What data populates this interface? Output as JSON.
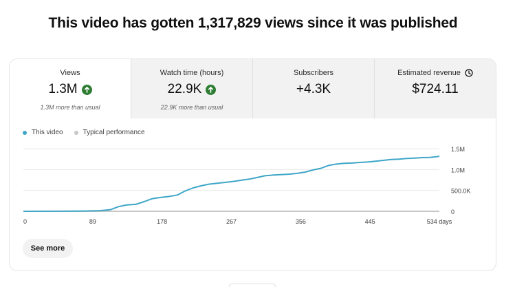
{
  "headline": "This video has gotten 1,317,829 views since it was published",
  "metrics": [
    {
      "label": "Views",
      "value": "1.3M",
      "trend": "up",
      "sub": "1.3M more than usual",
      "selected": true
    },
    {
      "label": "Watch time (hours)",
      "value": "22.9K",
      "trend": "up",
      "sub": "22.9K more than usual",
      "selected": false
    },
    {
      "label": "Subscribers",
      "value": "+4.3K",
      "trend": "",
      "sub": "",
      "selected": false
    },
    {
      "label": "Estimated revenue",
      "value": "$724.11",
      "trend": "",
      "sub": "",
      "selected": false,
      "icon": "clock-icon"
    }
  ],
  "legend": [
    {
      "label": "This video",
      "color": "#3ea6c8"
    },
    {
      "label": "Typical performance",
      "color": "#c6c6c6"
    }
  ],
  "chart_data": {
    "type": "line",
    "x_ticks": [
      "0",
      "89",
      "178",
      "267",
      "356",
      "445",
      "534 days"
    ],
    "y_ticks": [
      "0",
      "500.0K",
      "1.0M",
      "1.5M"
    ],
    "xlim": [
      0,
      534
    ],
    "ylim": [
      0,
      1500000
    ],
    "grid": true,
    "series": [
      {
        "name": "This video",
        "color": "#3ea6c8",
        "x": [
          0,
          40,
          80,
          98,
          112,
          122,
          132,
          145,
          155,
          165,
          175,
          185,
          198,
          208,
          218,
          228,
          238,
          248,
          258,
          268,
          278,
          290,
          300,
          310,
          322,
          332,
          342,
          352,
          362,
          372,
          382,
          392,
          402,
          412,
          422,
          432,
          442,
          452,
          462,
          472,
          482,
          492,
          502,
          512,
          522,
          534
        ],
        "y": [
          0,
          2000,
          6000,
          15000,
          40000,
          110000,
          150000,
          170000,
          230000,
          300000,
          330000,
          350000,
          390000,
          490000,
          560000,
          610000,
          650000,
          670000,
          690000,
          710000,
          740000,
          770000,
          810000,
          850000,
          870000,
          880000,
          890000,
          910000,
          940000,
          990000,
          1030000,
          1100000,
          1130000,
          1150000,
          1155000,
          1170000,
          1180000,
          1200000,
          1220000,
          1240000,
          1250000,
          1265000,
          1275000,
          1285000,
          1290000,
          1317829
        ]
      },
      {
        "name": "Typical performance",
        "color": "#c6c6c6",
        "x": [
          0,
          534
        ],
        "y": [
          0,
          0
        ]
      }
    ]
  },
  "see_more_label": "See more"
}
